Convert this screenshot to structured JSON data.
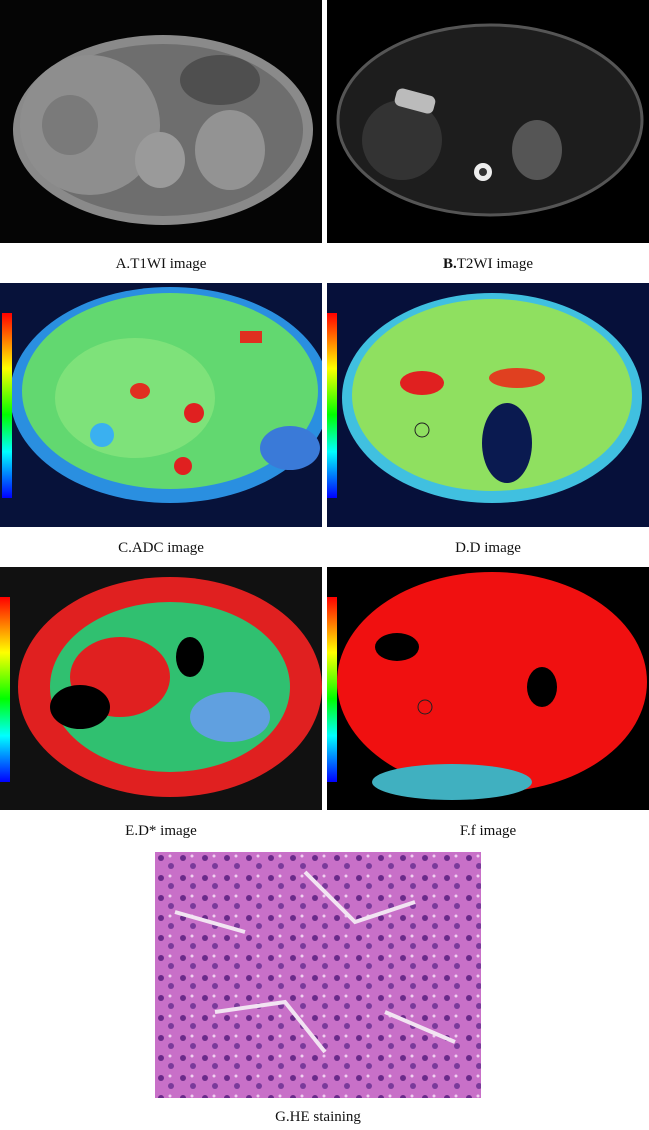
{
  "panels": [
    {
      "label": "A.",
      "caption": "T1WI image"
    },
    {
      "label": "B.",
      "caption": "T2WI image"
    },
    {
      "label": "C.",
      "caption": "ADC image"
    },
    {
      "label": "D.",
      "caption": "D image"
    },
    {
      "label": "E.",
      "caption": "D* image"
    },
    {
      "label": "F.",
      "caption": "f image"
    },
    {
      "label": "G.",
      "caption": "HE staining"
    }
  ]
}
